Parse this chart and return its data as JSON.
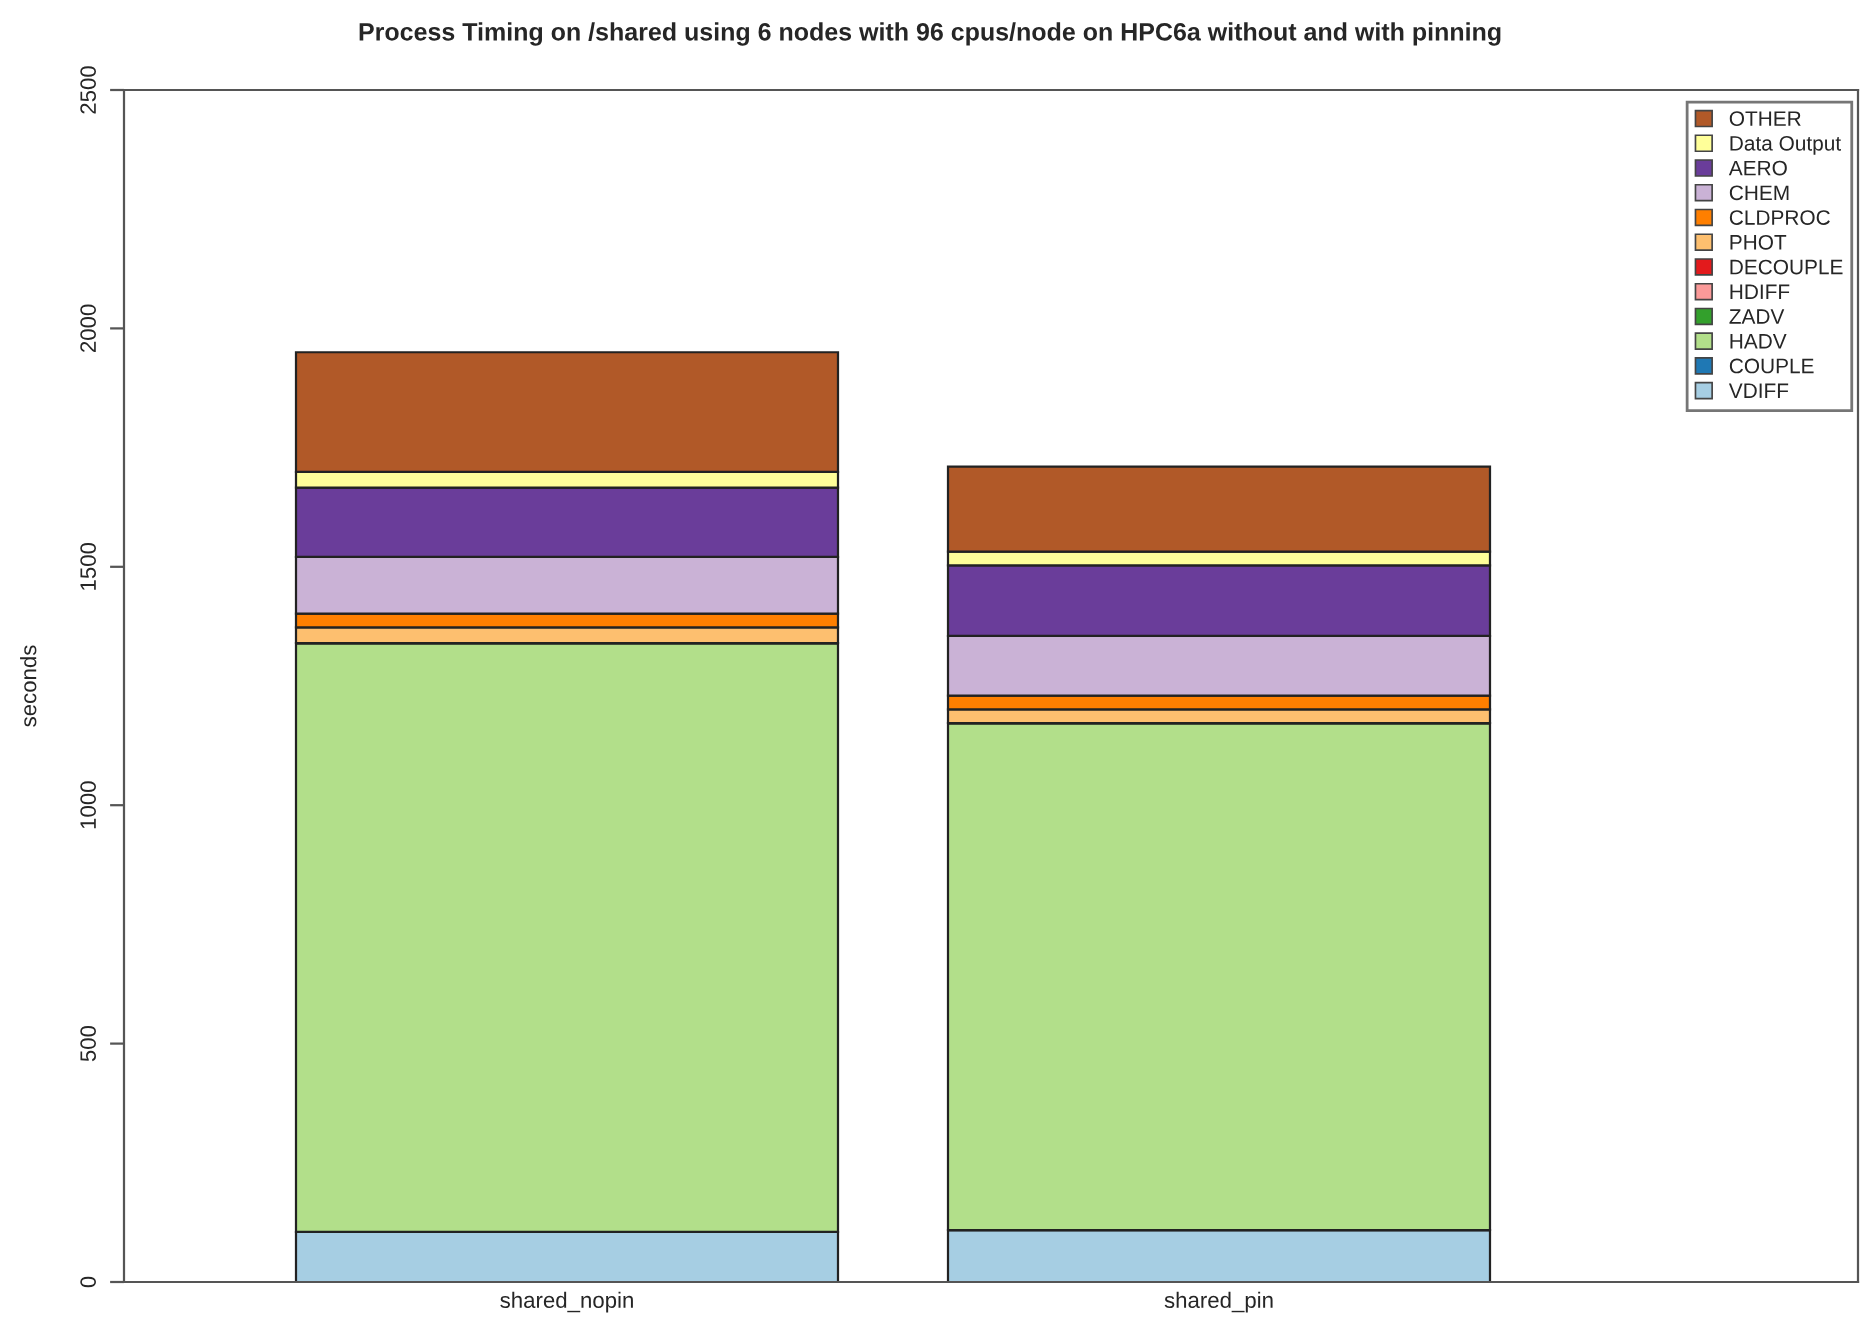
{
  "chart_data": {
    "type": "bar",
    "title": "Process Timing on /shared using 6 nodes with 96 cpus/node on HPC6a without and with pinning",
    "ylabel": "seconds",
    "categories": [
      "shared_nopin",
      "shared_pin"
    ],
    "stacked": true,
    "ylim": [
      0,
      2500
    ],
    "yticks": [
      0,
      500,
      1000,
      1500,
      2000,
      2500
    ],
    "grid": false,
    "legend": "top right",
    "series": [
      {
        "name": "VDIFF",
        "color": "#a6cee3",
        "values": [
          105,
          109
        ]
      },
      {
        "name": "COUPLE",
        "color": "#1f78b4",
        "values": [
          0,
          0
        ]
      },
      {
        "name": "HADV",
        "color": "#b2df8a",
        "values": [
          1235,
          1063
        ]
      },
      {
        "name": "ZADV",
        "color": "#33a02c",
        "values": [
          0,
          0
        ]
      },
      {
        "name": "HDIFF",
        "color": "#fb9a99",
        "values": [
          0,
          0
        ]
      },
      {
        "name": "DECOUPLE",
        "color": "#e31a1c",
        "values": [
          0,
          0
        ]
      },
      {
        "name": "PHOT",
        "color": "#fdbf6f",
        "values": [
          33,
          29
        ]
      },
      {
        "name": "CLDPROC",
        "color": "#ff7f00",
        "values": [
          29,
          29
        ]
      },
      {
        "name": "CHEM",
        "color": "#cab2d6",
        "values": [
          119,
          125
        ]
      },
      {
        "name": "AERO",
        "color": "#6a3d9a",
        "values": [
          145,
          148
        ]
      },
      {
        "name": "Data Output",
        "color": "#ffff99",
        "values": [
          33,
          29
        ]
      },
      {
        "name": "OTHER",
        "color": "#b15928",
        "values": [
          251,
          178
        ]
      }
    ]
  }
}
